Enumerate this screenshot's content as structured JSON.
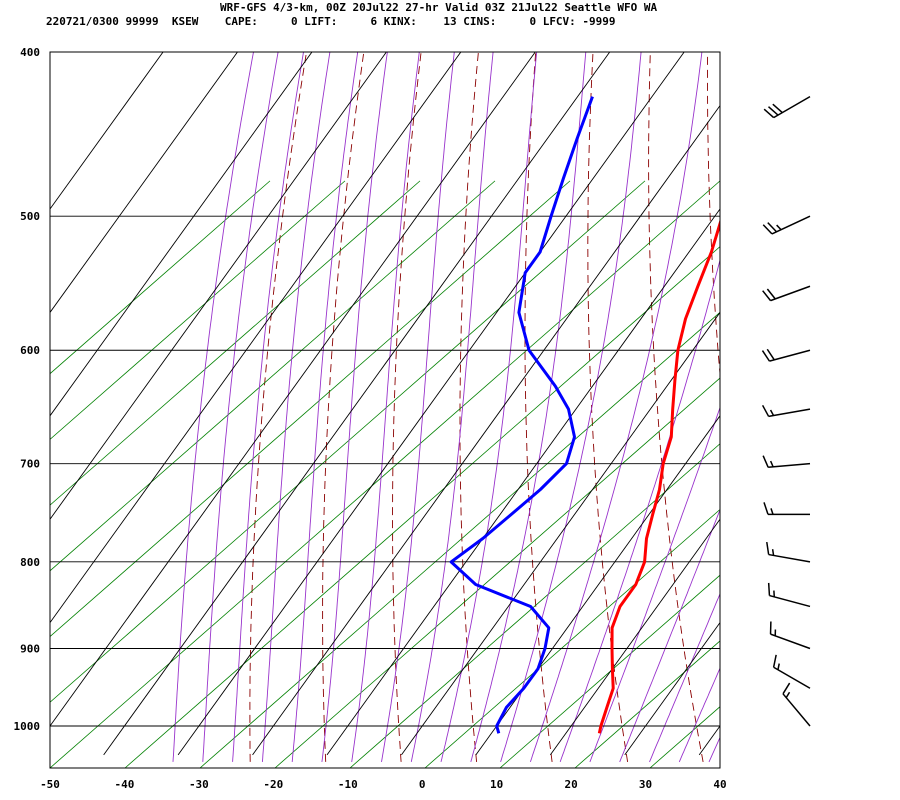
{
  "header": {
    "title": "WRF-GFS 4/3-km, 00Z 20Jul22 27-hr Valid 03Z 21Jul22 Seattle WFO WA",
    "info": "220721/0300 99999  KSEW    CAPE:     0 LIFT:     6 KINX:    13 CINS:     0 LFCV: -9999"
  },
  "chart_data": {
    "type": "line",
    "subtype": "skew-T log-p sounding",
    "x_ticks": [
      -50,
      -40,
      -30,
      -20,
      -10,
      0,
      10,
      20,
      30,
      40
    ],
    "y_ticks": [
      400,
      500,
      600,
      700,
      800,
      900,
      1000
    ],
    "xlim": [
      -50,
      40
    ],
    "ylim": [
      1040,
      400
    ],
    "y_scale": "log (pressure)",
    "grid": true,
    "series": [
      {
        "color": "#ff0000",
        "points": [
          [
            -19,
            425
          ],
          [
            -15,
            450
          ],
          [
            -12,
            475
          ],
          [
            -9,
            500
          ],
          [
            -7,
            525
          ],
          [
            -5.5,
            550
          ],
          [
            -4,
            575
          ],
          [
            -2,
            600
          ],
          [
            0.5,
            625
          ],
          [
            3,
            650
          ],
          [
            5.5,
            675
          ],
          [
            7,
            700
          ],
          [
            9,
            725
          ],
          [
            10.5,
            750
          ],
          [
            12,
            775
          ],
          [
            14,
            800
          ],
          [
            15,
            825
          ],
          [
            15,
            850
          ],
          [
            16,
            875
          ],
          [
            18,
            900
          ],
          [
            20,
            925
          ],
          [
            22,
            950
          ],
          [
            23,
            975
          ],
          [
            24,
            1000
          ],
          [
            24.5,
            1010
          ]
        ]
      },
      {
        "color": "#0000ff",
        "points": [
          [
            -38,
            425
          ],
          [
            -36,
            450
          ],
          [
            -34,
            475
          ],
          [
            -32,
            500
          ],
          [
            -30,
            525
          ],
          [
            -30,
            540
          ],
          [
            -27,
            570
          ],
          [
            -22,
            600
          ],
          [
            -15,
            630
          ],
          [
            -11,
            650
          ],
          [
            -7.5,
            675
          ],
          [
            -6,
            700
          ],
          [
            -7,
            725
          ],
          [
            -8.5,
            750
          ],
          [
            -10,
            775
          ],
          [
            -12,
            800
          ],
          [
            -6.5,
            825
          ],
          [
            3,
            850
          ],
          [
            7.5,
            875
          ],
          [
            9,
            900
          ],
          [
            10,
            925
          ],
          [
            10,
            950
          ],
          [
            9.5,
            975
          ],
          [
            10,
            1000
          ],
          [
            11,
            1010
          ]
        ]
      }
    ],
    "wind_barbs": [
      {
        "p": 425,
        "dir": 240,
        "spd": 30
      },
      {
        "p": 500,
        "dir": 245,
        "spd": 25
      },
      {
        "p": 550,
        "dir": 250,
        "spd": 20
      },
      {
        "p": 600,
        "dir": 255,
        "spd": 20
      },
      {
        "p": 650,
        "dir": 260,
        "spd": 15
      },
      {
        "p": 700,
        "dir": 265,
        "spd": 15
      },
      {
        "p": 750,
        "dir": 270,
        "spd": 15
      },
      {
        "p": 800,
        "dir": 280,
        "spd": 15
      },
      {
        "p": 850,
        "dir": 285,
        "spd": 15
      },
      {
        "p": 900,
        "dir": 290,
        "spd": 15
      },
      {
        "p": 950,
        "dir": 300,
        "spd": 15
      },
      {
        "p": 1000,
        "dir": 320,
        "spd": 15
      }
    ],
    "colors": {
      "temperature": "#ff0000",
      "dewpoint": "#0000ff",
      "isotherm": "#000000",
      "dry_adiabat": "#8b0000",
      "moist_adiabat": "#9933cc",
      "mixing_ratio": "#008000"
    }
  }
}
